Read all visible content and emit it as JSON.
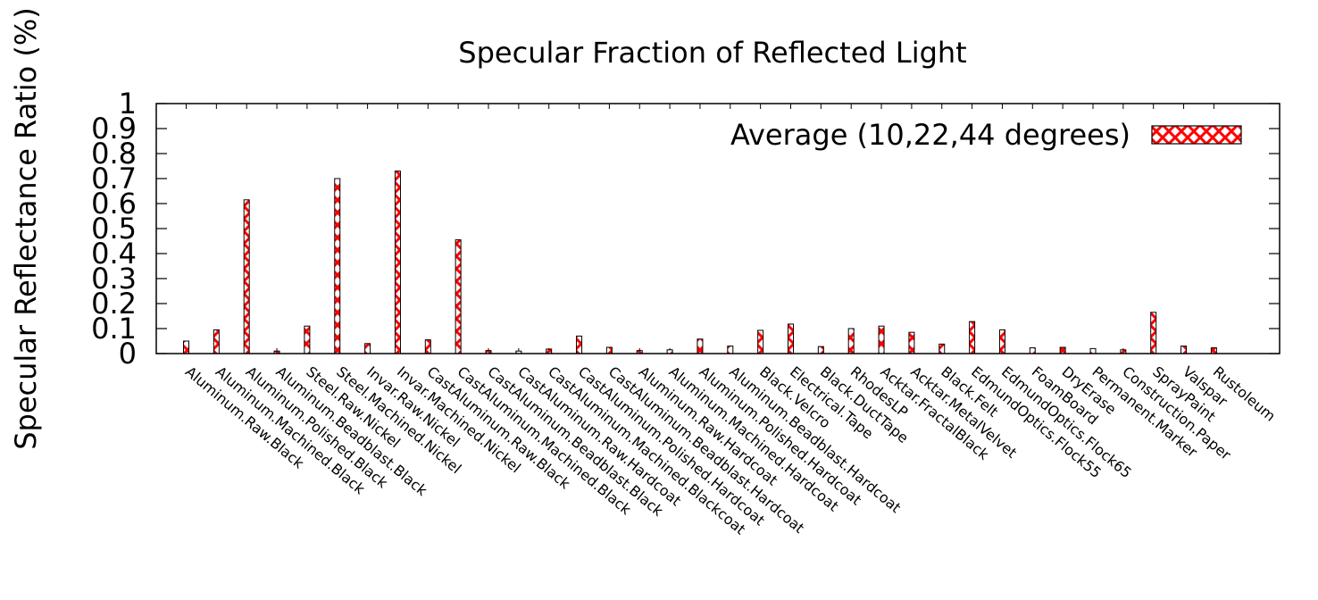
{
  "chart_data": {
    "type": "bar",
    "title": "Specular Fraction of Reflected Light",
    "ylabel": "Specular Reflectance Ratio (%)",
    "xlabel": "",
    "ylim": [
      0,
      1
    ],
    "yticks": [
      "0",
      "0.1",
      "0.2",
      "0.3",
      "0.4",
      "0.5",
      "0.6",
      "0.7",
      "0.8",
      "0.9",
      "1"
    ],
    "legend_position": "top-right",
    "fill_pattern": "red-white crosshatch",
    "colors": {
      "bar_fill": "#ff0000",
      "bar_outline": "#000000",
      "axis": "#000000"
    },
    "categories": [
      "Aluminum.Raw.Black",
      "Aluminum.Machined.Black",
      "Aluminum.Polished.Black",
      "Aluminum.Beadblast.Black",
      "Steel.Raw.Nickel",
      "Steel.Machined.Nickel",
      "Invar.Raw.Nickel",
      "Invar.Machined.Nickel",
      "CastAluminum.Raw.Black",
      "CastAluminum.Machined.Black",
      "CastAluminum.Beadblast.Black",
      "CastAluminum.Raw.Hardcoat",
      "CastAluminum.Machined.Blackcoat",
      "CastAluminum.Polished.Hardcoat",
      "CastAluminum.Beadblast.Hardcoat",
      "Aluminum.Raw.Hardcoat",
      "Aluminum.Machined.Hardcoat",
      "Aluminum.Polished.Hardcoat",
      "Aluminum.Beadblast.Hardcoat",
      "Black.Velcro",
      "Electrical.Tape",
      "Black.DuctTape",
      "RhodesLP",
      "Acktar.FractalBlack",
      "Acktar.MetalVelvet",
      "Black.Felt",
      "EdmundOptics.Flock55",
      "EdmundOptics.Flock65",
      "FoamBoard",
      "DryErase",
      "Permanent.Marker",
      "Construction.Paper",
      "SprayPaint",
      "Valspar",
      "Rustoleum"
    ],
    "series": [
      {
        "name": "Average (10,22,44 degrees)",
        "values": [
          0.05,
          0.095,
          0.615,
          0.01,
          0.11,
          0.7,
          0.04,
          0.73,
          0.055,
          0.455,
          0.012,
          0.01,
          0.018,
          0.07,
          0.025,
          0.012,
          0.015,
          0.058,
          0.03,
          0.093,
          0.118,
          0.028,
          0.1,
          0.11,
          0.085,
          0.038,
          0.128,
          0.095,
          0.023,
          0.025,
          0.02,
          0.015,
          0.165,
          0.03,
          0.023
        ]
      }
    ]
  }
}
